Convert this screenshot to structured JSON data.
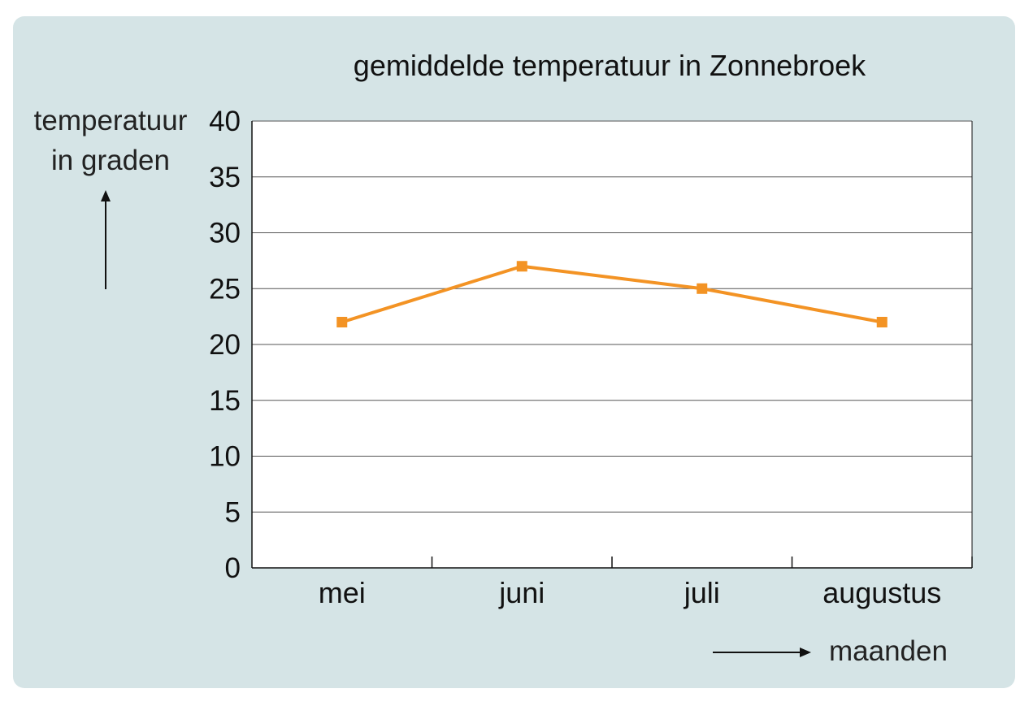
{
  "chart_data": {
    "type": "line",
    "title": "gemiddelde temperatuur in Zonnebroek",
    "ylabel_lines": [
      "temperatuur",
      "in graden"
    ],
    "xlabel": "maanden",
    "categories": [
      "mei",
      "juni",
      "juli",
      "augustus"
    ],
    "series": [
      {
        "name": "gemiddelde temperatuur",
        "values": [
          22,
          27,
          25,
          22
        ]
      }
    ],
    "ylim": [
      0,
      40
    ],
    "yticks": [
      0,
      5,
      10,
      15,
      20,
      25,
      30,
      35,
      40
    ],
    "grid": true,
    "line_color": "#f39324"
  }
}
